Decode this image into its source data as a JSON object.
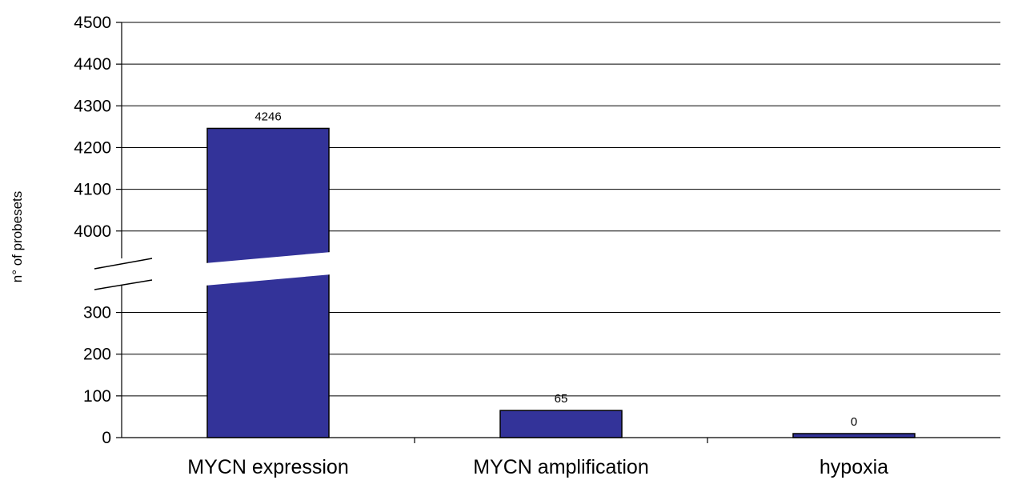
{
  "chart_data": {
    "type": "bar",
    "categories": [
      "MYCN expression",
      "MYCN amplification",
      "hypoxia"
    ],
    "values": [
      4246,
      65,
      0
    ],
    "data_labels": [
      "4246",
      "65",
      "0"
    ],
    "title": "",
    "xlabel": "",
    "ylabel": "n° of probesets",
    "axis_break": {
      "lower_range": [
        0,
        350
      ],
      "upper_range": [
        3950,
        4500
      ]
    },
    "yticks_lower": [
      "0",
      "100",
      "200",
      "300"
    ],
    "yticks_upper": [
      "4000",
      "4100",
      "4200",
      "4300",
      "4400",
      "4500"
    ],
    "grid": true,
    "legend": "none",
    "colors": {
      "bar": "#333399",
      "bar_border": "#000000",
      "grid": "#000000",
      "background": "#ffffff"
    }
  }
}
